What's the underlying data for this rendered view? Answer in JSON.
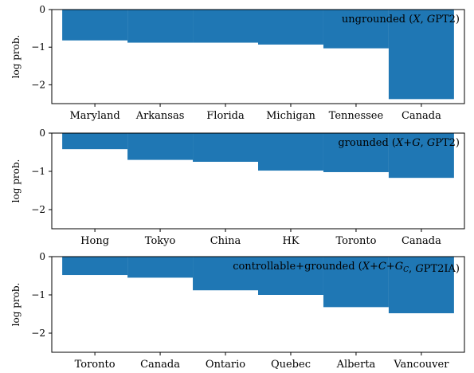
{
  "chart_data": [
    {
      "type": "bar",
      "annotation": "ungrounded (X, GPT2)",
      "ylabel": "log prob.",
      "categories": [
        "Maryland",
        "Arkansas",
        "Florida",
        "Michigan",
        "Tennessee",
        "Canada"
      ],
      "values": [
        -0.82,
        -0.88,
        -0.88,
        -0.93,
        -1.03,
        -2.38
      ],
      "ylim": [
        -2.5,
        0
      ],
      "yticks": [
        0,
        -1,
        -2
      ],
      "ytick_labels": [
        "0",
        "−1",
        "−2"
      ],
      "color": "#1f77b4"
    },
    {
      "type": "bar",
      "annotation": "grounded (X+G, GPT2)",
      "ylabel": "log prob.",
      "categories": [
        "Hong",
        "Tokyo",
        "China",
        "HK",
        "Toronto",
        "Canada"
      ],
      "values": [
        -0.42,
        -0.7,
        -0.75,
        -0.98,
        -1.02,
        -1.17
      ],
      "ylim": [
        -2.5,
        0
      ],
      "yticks": [
        0,
        -1,
        -2
      ],
      "ytick_labels": [
        "0",
        "−1",
        "−2"
      ],
      "color": "#1f77b4"
    },
    {
      "type": "bar",
      "annotation": "controllable+grounded (X+C+G_C, GPT2IA)",
      "ylabel": "log prob.",
      "categories": [
        "Toronto",
        "Canada",
        "Ontario",
        "Quebec",
        "Alberta",
        "Vancouver"
      ],
      "values": [
        -0.48,
        -0.55,
        -0.88,
        -1.0,
        -1.32,
        -1.48
      ],
      "ylim": [
        -2.5,
        0
      ],
      "yticks": [
        0,
        -1,
        -2
      ],
      "ytick_labels": [
        "0",
        "−1",
        "−2"
      ],
      "color": "#1f77b4"
    }
  ]
}
